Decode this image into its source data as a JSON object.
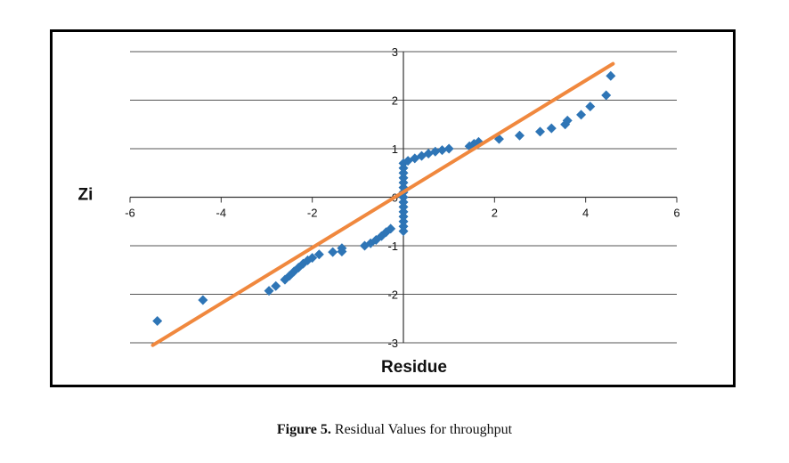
{
  "caption": {
    "label": "Figure 5.",
    "text": "Residual Values for throughput"
  },
  "chart_data": {
    "type": "scatter",
    "xlabel": "Residue",
    "ylabel": "Zi",
    "xlim": [
      -6,
      6
    ],
    "ylim": [
      -3,
      3
    ],
    "x_ticks": [
      "-6",
      "-4",
      "-2",
      "0",
      "2",
      "4",
      "6"
    ],
    "y_ticks": [
      "3",
      "2",
      "1",
      "0",
      "-1",
      "-2",
      "-3"
    ],
    "grid": "horizontal",
    "legend": "none",
    "series": [
      {
        "kind": "points",
        "color": "#2E75B6",
        "marker": "diamond",
        "points": [
          [
            -5.4,
            -2.55
          ],
          [
            -4.4,
            -2.12
          ],
          [
            -2.95,
            -1.93
          ],
          [
            -2.8,
            -1.83
          ],
          [
            -2.6,
            -1.7
          ],
          [
            -2.5,
            -1.62
          ],
          [
            -2.4,
            -1.53
          ],
          [
            -2.3,
            -1.45
          ],
          [
            -2.2,
            -1.37
          ],
          [
            -2.1,
            -1.3
          ],
          [
            -2.0,
            -1.25
          ],
          [
            -1.85,
            -1.18
          ],
          [
            -1.55,
            -1.13
          ],
          [
            -1.35,
            -1.05
          ],
          [
            -1.35,
            -1.12
          ],
          [
            -0.85,
            -1.0
          ],
          [
            -0.72,
            -0.95
          ],
          [
            -0.6,
            -0.88
          ],
          [
            -0.48,
            -0.8
          ],
          [
            -0.38,
            -0.72
          ],
          [
            -0.28,
            -0.65
          ],
          [
            0.0,
            -0.7
          ],
          [
            0.0,
            -0.6
          ],
          [
            0.0,
            -0.5
          ],
          [
            0.0,
            -0.4
          ],
          [
            0.0,
            -0.3
          ],
          [
            0.0,
            -0.2
          ],
          [
            0.0,
            -0.1
          ],
          [
            0.0,
            0.0
          ],
          [
            0.0,
            0.1
          ],
          [
            0.0,
            0.2
          ],
          [
            0.0,
            0.3
          ],
          [
            0.0,
            0.4
          ],
          [
            0.0,
            0.5
          ],
          [
            0.0,
            0.6
          ],
          [
            0.0,
            0.7
          ],
          [
            0.1,
            0.75
          ],
          [
            0.25,
            0.8
          ],
          [
            0.4,
            0.85
          ],
          [
            0.55,
            0.9
          ],
          [
            0.7,
            0.94
          ],
          [
            0.85,
            0.97
          ],
          [
            1.0,
            1.0
          ],
          [
            1.45,
            1.05
          ],
          [
            1.55,
            1.1
          ],
          [
            1.65,
            1.14
          ],
          [
            2.1,
            1.2
          ],
          [
            2.55,
            1.27
          ],
          [
            3.0,
            1.35
          ],
          [
            3.25,
            1.42
          ],
          [
            3.55,
            1.5
          ],
          [
            3.6,
            1.58
          ],
          [
            3.9,
            1.7
          ],
          [
            4.1,
            1.87
          ],
          [
            4.45,
            2.1
          ],
          [
            4.55,
            2.5
          ]
        ]
      },
      {
        "kind": "line",
        "color": "#F0883E",
        "points": [
          [
            -5.5,
            -3.05
          ],
          [
            4.6,
            2.75
          ]
        ]
      }
    ]
  }
}
